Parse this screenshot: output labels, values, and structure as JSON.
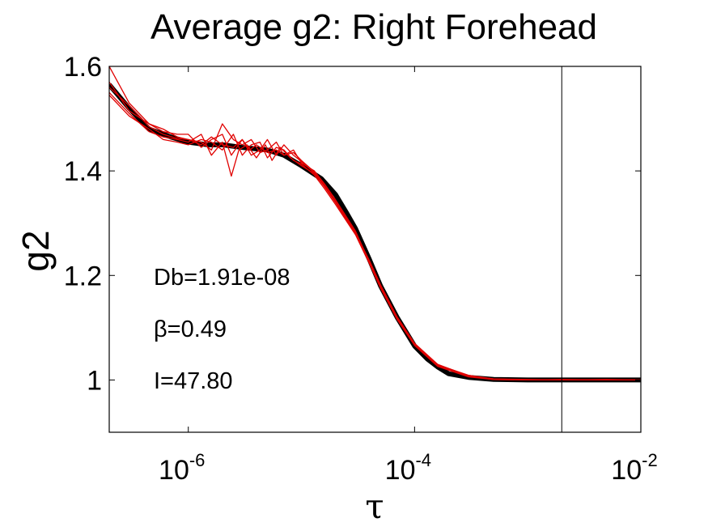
{
  "chart_data": {
    "type": "line",
    "title": "Average g2: Right Forehead",
    "xlabel": "τ",
    "ylabel": "g2",
    "xscale": "log",
    "xlim": [
      2e-07,
      0.01
    ],
    "ylim": [
      0.9,
      1.6
    ],
    "grid": false,
    "x_ticks": [
      {
        "value": 1e-06,
        "base": "10",
        "exp": "-6"
      },
      {
        "value": 0.0001,
        "base": "10",
        "exp": "-4"
      },
      {
        "value": 0.01,
        "base": "10",
        "exp": "-2"
      }
    ],
    "y_ticks": [
      {
        "value": 1.6,
        "label": "1.6"
      },
      {
        "value": 1.4,
        "label": "1.4"
      },
      {
        "value": 1.2,
        "label": "1.2"
      },
      {
        "value": 1.0,
        "label": "1"
      }
    ],
    "vertical_line_x": 0.002,
    "annotations": [
      "Db=1.91e-08",
      "β=0.49",
      "I=47.80"
    ],
    "colors": {
      "fit": "#000000",
      "measured": "#e00000"
    },
    "series": [
      {
        "color": "#000000",
        "style": "thick",
        "x": [
          2e-07,
          3e-07,
          4.5e-07,
          7e-07,
          1e-06,
          1.5e-06,
          2e-06,
          3e-06,
          5e-06,
          7e-06,
          1e-05,
          1.5e-05,
          2e-05,
          2.5e-05,
          3e-05,
          4e-05,
          5e-05,
          7e-05,
          0.0001,
          0.00013,
          0.00016,
          0.0002,
          0.0003,
          0.0005,
          0.001,
          0.002,
          0.005,
          0.01
        ],
        "y": [
          1.565,
          1.52,
          1.48,
          1.465,
          1.455,
          1.45,
          1.45,
          1.445,
          1.44,
          1.43,
          1.41,
          1.385,
          1.355,
          1.32,
          1.29,
          1.23,
          1.18,
          1.12,
          1.065,
          1.04,
          1.025,
          1.012,
          1.005,
          1.001,
          1.0,
          1.0,
          1.0,
          1.0
        ]
      },
      {
        "color": "#e00000",
        "style": "thin",
        "x": [
          2e-07,
          3e-07,
          4.5e-07,
          6e-07,
          8e-07,
          1e-06,
          1.3e-06,
          1.6e-06,
          2e-06,
          2.4e-06,
          3e-06,
          3.5e-06,
          4e-06,
          5e-06,
          6e-06,
          7e-06,
          8.5e-06,
          1e-05,
          1.3e-05,
          1.6e-05,
          2e-05,
          3e-05,
          4e-05,
          5e-05,
          7e-05,
          0.0001,
          0.00016,
          0.0003,
          0.0005,
          0.001,
          0.002,
          0.005,
          0.01
        ],
        "y": [
          1.6,
          1.53,
          1.49,
          1.475,
          1.47,
          1.47,
          1.445,
          1.46,
          1.47,
          1.43,
          1.46,
          1.44,
          1.45,
          1.435,
          1.44,
          1.43,
          1.44,
          1.415,
          1.4,
          1.375,
          1.345,
          1.285,
          1.225,
          1.18,
          1.12,
          1.07,
          1.028,
          1.008,
          1.002,
          1.0,
          1.0,
          1.0,
          1.0
        ]
      },
      {
        "color": "#e00000",
        "style": "thin",
        "x": [
          2e-07,
          3e-07,
          4.5e-07,
          6e-07,
          8e-07,
          1e-06,
          1.3e-06,
          1.6e-06,
          2e-06,
          2.4e-06,
          2.8e-06,
          3.3e-06,
          4e-06,
          4.8e-06,
          5.5e-06,
          6.5e-06,
          8e-06,
          1e-05,
          1.3e-05,
          1.6e-05,
          2e-05,
          3e-05,
          4e-05,
          5e-05,
          7e-05,
          0.0001,
          0.00016,
          0.0003,
          0.0005,
          0.001,
          0.002,
          0.005,
          0.01
        ],
        "y": [
          1.55,
          1.51,
          1.475,
          1.465,
          1.46,
          1.455,
          1.47,
          1.43,
          1.455,
          1.39,
          1.44,
          1.45,
          1.425,
          1.45,
          1.42,
          1.445,
          1.425,
          1.41,
          1.395,
          1.37,
          1.34,
          1.28,
          1.225,
          1.178,
          1.118,
          1.068,
          1.027,
          1.007,
          1.001,
          1.0,
          1.001,
          1.0,
          1.0
        ]
      },
      {
        "color": "#e00000",
        "style": "thin",
        "x": [
          2e-07,
          3e-07,
          4.5e-07,
          6e-07,
          8e-07,
          1e-06,
          1.3e-06,
          1.6e-06,
          2e-06,
          2.5e-06,
          3e-06,
          3.6e-06,
          4.3e-06,
          5e-06,
          6e-06,
          7e-06,
          8.5e-06,
          1e-05,
          1.3e-05,
          1.6e-05,
          2e-05,
          3e-05,
          4e-05,
          5e-05,
          7e-05,
          0.0001,
          0.00016,
          0.0003,
          0.0005,
          0.001,
          0.002,
          0.005,
          0.01
        ],
        "y": [
          1.56,
          1.525,
          1.485,
          1.47,
          1.462,
          1.46,
          1.455,
          1.44,
          1.49,
          1.46,
          1.45,
          1.46,
          1.435,
          1.44,
          1.455,
          1.43,
          1.435,
          1.42,
          1.398,
          1.372,
          1.342,
          1.282,
          1.228,
          1.182,
          1.121,
          1.07,
          1.03,
          1.008,
          1.002,
          1.0,
          1.0,
          1.001,
          1.0
        ]
      },
      {
        "color": "#e00000",
        "style": "thin",
        "x": [
          2e-07,
          3e-07,
          4.5e-07,
          6e-07,
          8e-07,
          1e-06,
          1.3e-06,
          1.6e-06,
          2e-06,
          2.5e-06,
          3e-06,
          3.6e-06,
          4.3e-06,
          5e-06,
          6e-06,
          7e-06,
          8.5e-06,
          1e-05,
          1.3e-05,
          1.6e-05,
          2e-05,
          3e-05,
          4e-05,
          5e-05,
          7e-05,
          0.0001,
          0.00016,
          0.0003,
          0.0005,
          0.001,
          0.002,
          0.005,
          0.01
        ],
        "y": [
          1.545,
          1.505,
          1.48,
          1.46,
          1.455,
          1.45,
          1.46,
          1.455,
          1.44,
          1.47,
          1.43,
          1.45,
          1.455,
          1.425,
          1.445,
          1.44,
          1.42,
          1.413,
          1.392,
          1.366,
          1.336,
          1.278,
          1.222,
          1.176,
          1.116,
          1.066,
          1.026,
          1.006,
          1.001,
          1.0,
          1.0,
          1.0,
          1.0
        ]
      },
      {
        "color": "#e00000",
        "style": "thin",
        "x": [
          2e-07,
          3e-07,
          4.5e-07,
          6e-07,
          8e-07,
          1e-06,
          1.3e-06,
          1.6e-06,
          2e-06,
          2.5e-06,
          3e-06,
          3.6e-06,
          4.3e-06,
          5e-06,
          6e-06,
          7e-06,
          8.5e-06,
          1e-05,
          1.3e-05,
          1.6e-05,
          2e-05,
          3e-05,
          4e-05,
          5e-05,
          7e-05,
          0.0001,
          0.00016,
          0.0003,
          0.0005,
          0.001,
          0.002,
          0.005,
          0.01
        ],
        "y": [
          1.57,
          1.515,
          1.49,
          1.48,
          1.465,
          1.46,
          1.45,
          1.465,
          1.45,
          1.445,
          1.46,
          1.43,
          1.44,
          1.46,
          1.43,
          1.45,
          1.43,
          1.418,
          1.396,
          1.37,
          1.34,
          1.281,
          1.226,
          1.18,
          1.119,
          1.069,
          1.029,
          1.009,
          1.002,
          1.001,
          1.0,
          1.0,
          1.0
        ]
      }
    ]
  }
}
